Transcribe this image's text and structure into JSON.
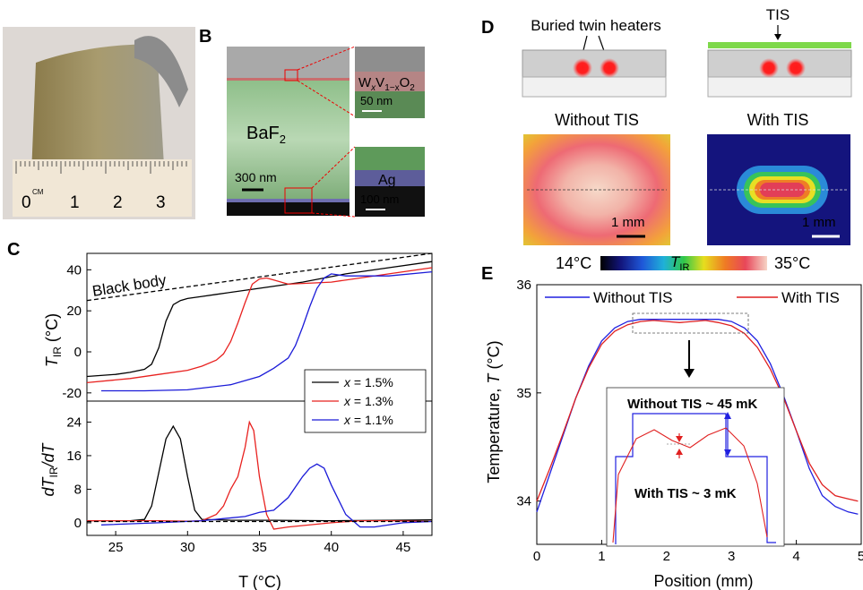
{
  "panels": {
    "A": {
      "label": "A",
      "ruler": {
        "unit": "CM",
        "nums": [
          "0",
          "1",
          "2",
          "3"
        ]
      }
    },
    "B": {
      "label": "B",
      "material": "BaF",
      "material_sub": "2",
      "scale_main": "300 nm",
      "inset1": {
        "formula": [
          "W",
          "x",
          "V",
          "1−x",
          "O",
          "2"
        ],
        "scale": "50 nm"
      },
      "inset2": {
        "material": "Ag",
        "scale": "100 nm"
      }
    },
    "C": {
      "label": "C"
    },
    "D": {
      "label": "D",
      "heaters_label": "Buried twin heaters",
      "tis_label": "TIS",
      "without_title": "Without TIS",
      "with_title": "With TIS",
      "scale": "1 mm",
      "cb_min": "14°C",
      "cb_max": "35°C",
      "cb_label": "T",
      "cb_sub": "IR"
    },
    "E": {
      "label": "E"
    }
  },
  "colors": {
    "x15": "#000000",
    "x13": "#e8211f",
    "x11": "#1b1bd8",
    "blue": "#2020e0",
    "red": "#e02020"
  },
  "chart_data": [
    {
      "id": "C-top",
      "type": "line",
      "ylabel": "T",
      "ylabel_sub": "IR",
      "ylabel_unit": " (°C)",
      "xlim": [
        23,
        47
      ],
      "ylim": [
        -24,
        48
      ],
      "yticks": [
        -20,
        0,
        20,
        40
      ],
      "annotation": "Black body",
      "legend_position": "right",
      "legend": [
        {
          "prefix": "x",
          "text": " = 1.5%",
          "color": "#000000"
        },
        {
          "prefix": "x",
          "text": " = 1.3%",
          "color": "#e8211f"
        },
        {
          "prefix": "x",
          "text": " = 1.1%",
          "color": "#1b1bd8"
        }
      ],
      "series": [
        {
          "name": "x = 1.5%",
          "color": "#000000",
          "x": [
            23,
            25,
            26,
            27,
            27.5,
            28,
            28.5,
            29,
            29.5,
            30,
            31,
            32,
            35,
            38,
            41,
            44,
            47
          ],
          "y": [
            -12,
            -11,
            -10,
            -8.5,
            -6,
            2,
            15,
            23,
            25,
            26,
            27,
            28,
            31,
            34,
            38,
            41,
            44
          ]
        },
        {
          "name": "x = 1.3%",
          "color": "#e8211f",
          "x": [
            23,
            26,
            28,
            30,
            31,
            32,
            32.5,
            33,
            33.5,
            34,
            34.5,
            35,
            35.5,
            36,
            37,
            40,
            44,
            47
          ],
          "y": [
            -15,
            -13,
            -11,
            -9,
            -7,
            -4,
            -1,
            5,
            14,
            24,
            33,
            35.5,
            36,
            35,
            33,
            34,
            38,
            41
          ]
        },
        {
          "name": "x = 1.1%",
          "color": "#1b1bd8",
          "x": [
            24,
            27,
            30,
            33,
            35,
            36,
            37,
            37.5,
            38,
            38.5,
            39,
            39.5,
            40,
            41,
            44,
            47
          ],
          "y": [
            -19,
            -19,
            -18.5,
            -16,
            -12,
            -8,
            -3,
            3,
            12,
            22,
            31,
            36,
            38,
            37,
            37,
            39
          ]
        },
        {
          "name": "Black body",
          "color": "#000000",
          "dashed": true,
          "x": [
            23,
            47
          ],
          "y": [
            25,
            48
          ]
        }
      ]
    },
    {
      "id": "C-bottom",
      "type": "line",
      "ylabel": "dT",
      "ylabel_sub": "IR",
      "ylabel_suffix": "/dT",
      "xlabel": "T (°C)",
      "xlim": [
        23,
        47
      ],
      "ylim": [
        -3,
        29
      ],
      "yticks": [
        0,
        8,
        16,
        24
      ],
      "xticks": [
        25,
        30,
        35,
        40,
        45
      ],
      "series": [
        {
          "name": "x = 1.5%",
          "color": "#000000",
          "x": [
            23,
            26,
            27,
            27.5,
            28,
            28.5,
            29,
            29.5,
            30,
            30.5,
            31,
            33,
            36,
            40,
            44,
            47
          ],
          "y": [
            0.5,
            0.5,
            0.8,
            4,
            12,
            20,
            23,
            20,
            11,
            3,
            0.8,
            0.6,
            0.6,
            0.5,
            0.6,
            0.7
          ]
        },
        {
          "name": "x = 1.3%",
          "color": "#e8211f",
          "x": [
            23,
            28,
            30,
            31,
            32,
            32.5,
            33,
            33.5,
            34,
            34.3,
            34.6,
            35,
            35.5,
            36,
            37,
            40,
            42,
            44,
            47
          ],
          "y": [
            0.5,
            0.5,
            0.4,
            0.5,
            2,
            4,
            8,
            11,
            18,
            24,
            22,
            11,
            2,
            -1.5,
            -1,
            0,
            0.5,
            0.5,
            0.3
          ]
        },
        {
          "name": "x = 1.1%",
          "color": "#1b1bd8",
          "x": [
            24,
            28,
            31,
            34,
            35,
            36,
            37,
            38,
            38.5,
            39,
            39.5,
            40,
            41,
            42,
            43,
            45,
            47
          ],
          "y": [
            -0.5,
            0,
            0.5,
            1.5,
            2.5,
            3,
            6,
            11,
            13,
            14,
            13,
            9,
            2,
            -1,
            -1,
            0,
            0.3
          ]
        },
        {
          "name": "baseline",
          "color": "#000000",
          "dashed": true,
          "x": [
            23,
            47
          ],
          "y": [
            0.3,
            0.3
          ]
        }
      ]
    },
    {
      "id": "E",
      "type": "line",
      "xlabel": "Position (mm)",
      "ylabel": "Temperature, ",
      "ylabel_var": "T",
      "ylabel_unit": " (°C)",
      "xlim": [
        0,
        5
      ],
      "ylim": [
        33.6,
        36
      ],
      "xticks": [
        0,
        1,
        2,
        3,
        4,
        5
      ],
      "yticks": [
        34,
        35,
        36
      ],
      "legend_position": "top",
      "legend": [
        {
          "text": "Without TIS",
          "color": "#2020e0"
        },
        {
          "text": "With TIS",
          "color": "#e02020"
        }
      ],
      "inset": {
        "without_text": "Without TIS ~ 45 mK",
        "with_text": "With TIS ~ 3 mK"
      },
      "series": [
        {
          "name": "Without TIS",
          "color": "#2020e0",
          "x": [
            0,
            0.2,
            0.4,
            0.6,
            0.8,
            1.0,
            1.2,
            1.4,
            1.6,
            1.8,
            2.0,
            2.2,
            2.4,
            2.6,
            2.8,
            3.0,
            3.2,
            3.4,
            3.6,
            3.8,
            4.0,
            4.2,
            4.4,
            4.6,
            4.8,
            4.95
          ],
          "y": [
            33.9,
            34.25,
            34.6,
            34.95,
            35.25,
            35.48,
            35.6,
            35.66,
            35.68,
            35.68,
            35.68,
            35.68,
            35.68,
            35.68,
            35.68,
            35.66,
            35.6,
            35.48,
            35.27,
            34.98,
            34.65,
            34.3,
            34.05,
            33.95,
            33.9,
            33.88
          ]
        },
        {
          "name": "With TIS",
          "color": "#e02020",
          "x": [
            0,
            0.2,
            0.4,
            0.6,
            0.8,
            1.0,
            1.2,
            1.4,
            1.6,
            1.8,
            2.0,
            2.2,
            2.4,
            2.6,
            2.8,
            3.0,
            3.2,
            3.4,
            3.6,
            3.8,
            4.0,
            4.2,
            4.4,
            4.6,
            4.8,
            4.95
          ],
          "y": [
            34.0,
            34.3,
            34.62,
            34.95,
            35.23,
            35.45,
            35.57,
            35.63,
            35.66,
            35.67,
            35.66,
            35.65,
            35.66,
            35.67,
            35.65,
            35.62,
            35.55,
            35.42,
            35.22,
            34.96,
            34.65,
            34.35,
            34.15,
            34.05,
            34.02,
            34.0
          ]
        }
      ]
    }
  ]
}
